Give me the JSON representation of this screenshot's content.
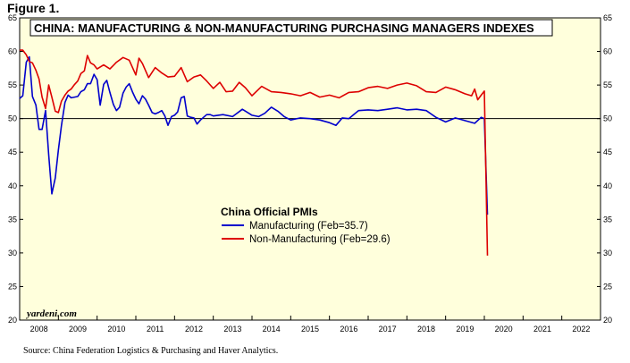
{
  "figure_label": "Figure 1.",
  "source_note": "Source: China Federation Logistics & Purchasing and Haver Analytics.",
  "brand": "yardeni.com",
  "colors": {
    "plot_background": "#ffffdc",
    "manufacturing": "#0000cc",
    "non_manufacturing": "#dd0000",
    "reference_line": "#000000"
  },
  "chart_data": {
    "type": "line",
    "title": "CHINA: MANUFACTURING & NON-MANUFACTURING PURCHASING MANAGERS INDEXES",
    "xlabel": "",
    "ylabel": "",
    "ylim": [
      20,
      65
    ],
    "xlim": [
      2008.0,
      2023.0
    ],
    "y_ticks": [
      "20",
      "25",
      "30",
      "35",
      "40",
      "45",
      "50",
      "55",
      "60",
      "65"
    ],
    "x_tick_labels": [
      "2008",
      "2009",
      "2010",
      "2011",
      "2012",
      "2013",
      "2014",
      "2015",
      "2016",
      "2017",
      "2018",
      "2019",
      "2020",
      "2021",
      "2022"
    ],
    "reference_line": 50,
    "grid": false,
    "legend_position": "center-left",
    "legend_title": "China Official PMIs",
    "series": [
      {
        "name": "Manufacturing (Feb=35.7)",
        "color": "#0000cc",
        "x": [
          2008.0,
          2008.08,
          2008.17,
          2008.25,
          2008.33,
          2008.42,
          2008.5,
          2008.58,
          2008.67,
          2008.75,
          2008.83,
          2008.92,
          2009.0,
          2009.08,
          2009.17,
          2009.25,
          2009.33,
          2009.42,
          2009.5,
          2009.58,
          2009.67,
          2009.75,
          2009.83,
          2009.92,
          2010.0,
          2010.08,
          2010.17,
          2010.25,
          2010.33,
          2010.42,
          2010.5,
          2010.58,
          2010.67,
          2010.75,
          2010.83,
          2010.92,
          2011.0,
          2011.08,
          2011.17,
          2011.25,
          2011.33,
          2011.42,
          2011.5,
          2011.58,
          2011.67,
          2011.75,
          2011.83,
          2011.92,
          2012.0,
          2012.08,
          2012.17,
          2012.25,
          2012.33,
          2012.42,
          2012.5,
          2012.58,
          2012.67,
          2012.75,
          2012.83,
          2012.92,
          2013.0,
          2013.25,
          2013.5,
          2013.75,
          2014.0,
          2014.17,
          2014.33,
          2014.5,
          2014.67,
          2014.83,
          2015.0,
          2015.25,
          2015.5,
          2015.75,
          2016.0,
          2016.17,
          2016.33,
          2016.5,
          2016.75,
          2017.0,
          2017.25,
          2017.5,
          2017.75,
          2018.0,
          2018.25,
          2018.5,
          2018.75,
          2019.0,
          2019.25,
          2019.5,
          2019.75,
          2019.92,
          2020.0,
          2020.08
        ],
        "values": [
          53.0,
          53.4,
          58.4,
          59.2,
          53.3,
          52.0,
          48.4,
          48.4,
          51.2,
          44.6,
          38.8,
          41.2,
          45.3,
          49.0,
          52.4,
          53.5,
          53.1,
          53.2,
          53.3,
          54.0,
          54.3,
          55.2,
          55.2,
          56.6,
          55.8,
          52.0,
          55.1,
          55.7,
          53.9,
          52.1,
          51.2,
          51.7,
          53.8,
          54.7,
          55.2,
          53.9,
          52.9,
          52.2,
          53.4,
          52.9,
          52.0,
          50.9,
          50.7,
          50.9,
          51.2,
          50.4,
          49.0,
          50.3,
          50.5,
          51.0,
          53.1,
          53.3,
          50.4,
          50.2,
          50.1,
          49.2,
          49.8,
          50.2,
          50.6,
          50.6,
          50.4,
          50.6,
          50.3,
          51.4,
          50.5,
          50.3,
          50.8,
          51.7,
          51.1,
          50.3,
          49.8,
          50.1,
          50.0,
          49.8,
          49.4,
          49.0,
          50.1,
          50.0,
          51.2,
          51.3,
          51.2,
          51.4,
          51.6,
          51.3,
          51.4,
          51.2,
          50.2,
          49.5,
          50.1,
          49.7,
          49.3,
          50.2,
          50.0,
          35.7
        ]
      },
      {
        "name": "Non-Manufacturing (Feb=29.6)",
        "color": "#dd0000",
        "x": [
          2008.0,
          2008.08,
          2008.17,
          2008.25,
          2008.33,
          2008.42,
          2008.5,
          2008.58,
          2008.67,
          2008.75,
          2008.83,
          2008.92,
          2009.0,
          2009.08,
          2009.17,
          2009.25,
          2009.33,
          2009.42,
          2009.5,
          2009.58,
          2009.67,
          2009.75,
          2009.83,
          2009.92,
          2010.0,
          2010.17,
          2010.33,
          2010.5,
          2010.67,
          2010.83,
          2011.0,
          2011.08,
          2011.17,
          2011.33,
          2011.5,
          2011.67,
          2011.83,
          2012.0,
          2012.17,
          2012.33,
          2012.5,
          2012.67,
          2012.83,
          2013.0,
          2013.17,
          2013.33,
          2013.5,
          2013.67,
          2013.83,
          2014.0,
          2014.25,
          2014.5,
          2014.75,
          2015.0,
          2015.25,
          2015.5,
          2015.75,
          2016.0,
          2016.25,
          2016.5,
          2016.75,
          2017.0,
          2017.25,
          2017.5,
          2017.75,
          2018.0,
          2018.25,
          2018.5,
          2018.75,
          2019.0,
          2019.25,
          2019.5,
          2019.67,
          2019.75,
          2019.83,
          2019.92,
          2020.0,
          2020.08
        ],
        "values": [
          60.2,
          60.2,
          59.5,
          58.5,
          58.3,
          57.2,
          55.9,
          53.2,
          51.5,
          55.0,
          53.2,
          51.1,
          50.9,
          52.6,
          53.5,
          54.1,
          54.4,
          55.1,
          55.6,
          56.7,
          57.1,
          59.4,
          58.3,
          58.0,
          57.4,
          58.0,
          57.4,
          58.4,
          59.1,
          58.7,
          56.5,
          59.0,
          58.2,
          56.1,
          57.6,
          56.8,
          56.2,
          56.3,
          57.6,
          55.5,
          56.2,
          56.5,
          55.6,
          54.5,
          55.4,
          54.0,
          54.1,
          55.4,
          54.6,
          53.4,
          54.8,
          54.0,
          53.9,
          53.7,
          53.4,
          53.9,
          53.2,
          53.5,
          53.1,
          53.9,
          54.0,
          54.6,
          54.8,
          54.5,
          55.0,
          55.3,
          54.9,
          54.0,
          53.9,
          54.7,
          54.3,
          53.7,
          53.4,
          54.4,
          52.8,
          53.5,
          54.1,
          29.6
        ]
      }
    ]
  }
}
